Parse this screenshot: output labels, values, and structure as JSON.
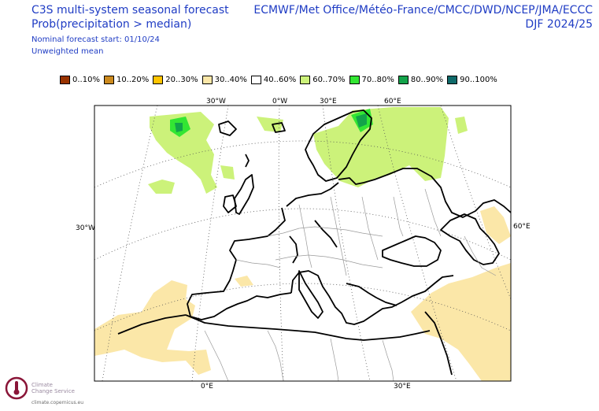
{
  "header": {
    "title_line1": "C3S multi-system seasonal forecast",
    "title_line2": "Prob(precipitation > median)",
    "start_line": "Nominal forecast start: 01/10/24",
    "mean_line": "Unweighted mean",
    "centres": "ECMWF/Met Office/Météo-France/CMCC/DWD/NCEP/JMA/ECCC",
    "season": "DJF 2024/25"
  },
  "legend": [
    {
      "label": "0..10%",
      "color": "#993300"
    },
    {
      "label": "10..20%",
      "color": "#cc8a1e"
    },
    {
      "label": "20..30%",
      "color": "#ffc400"
    },
    {
      "label": "30..40%",
      "color": "#fbe7a8"
    },
    {
      "label": "40..60%",
      "color": "#ffffff"
    },
    {
      "label": "60..70%",
      "color": "#ccf27a"
    },
    {
      "label": "70..80%",
      "color": "#33e633"
    },
    {
      "label": "80..90%",
      "color": "#13a34a"
    },
    {
      "label": "90..100%",
      "color": "#0f6a6a"
    }
  ],
  "map": {
    "top_labels": [
      "30°W",
      "0°W",
      "30°E",
      "60°E"
    ],
    "bottom_labels": [
      "0°E",
      "30°E"
    ],
    "left_label": "30°W",
    "right_label": "60°E"
  },
  "logo": {
    "line1": "Climate",
    "line2": "Change Service",
    "url": "climate.copernicus.eu"
  }
}
